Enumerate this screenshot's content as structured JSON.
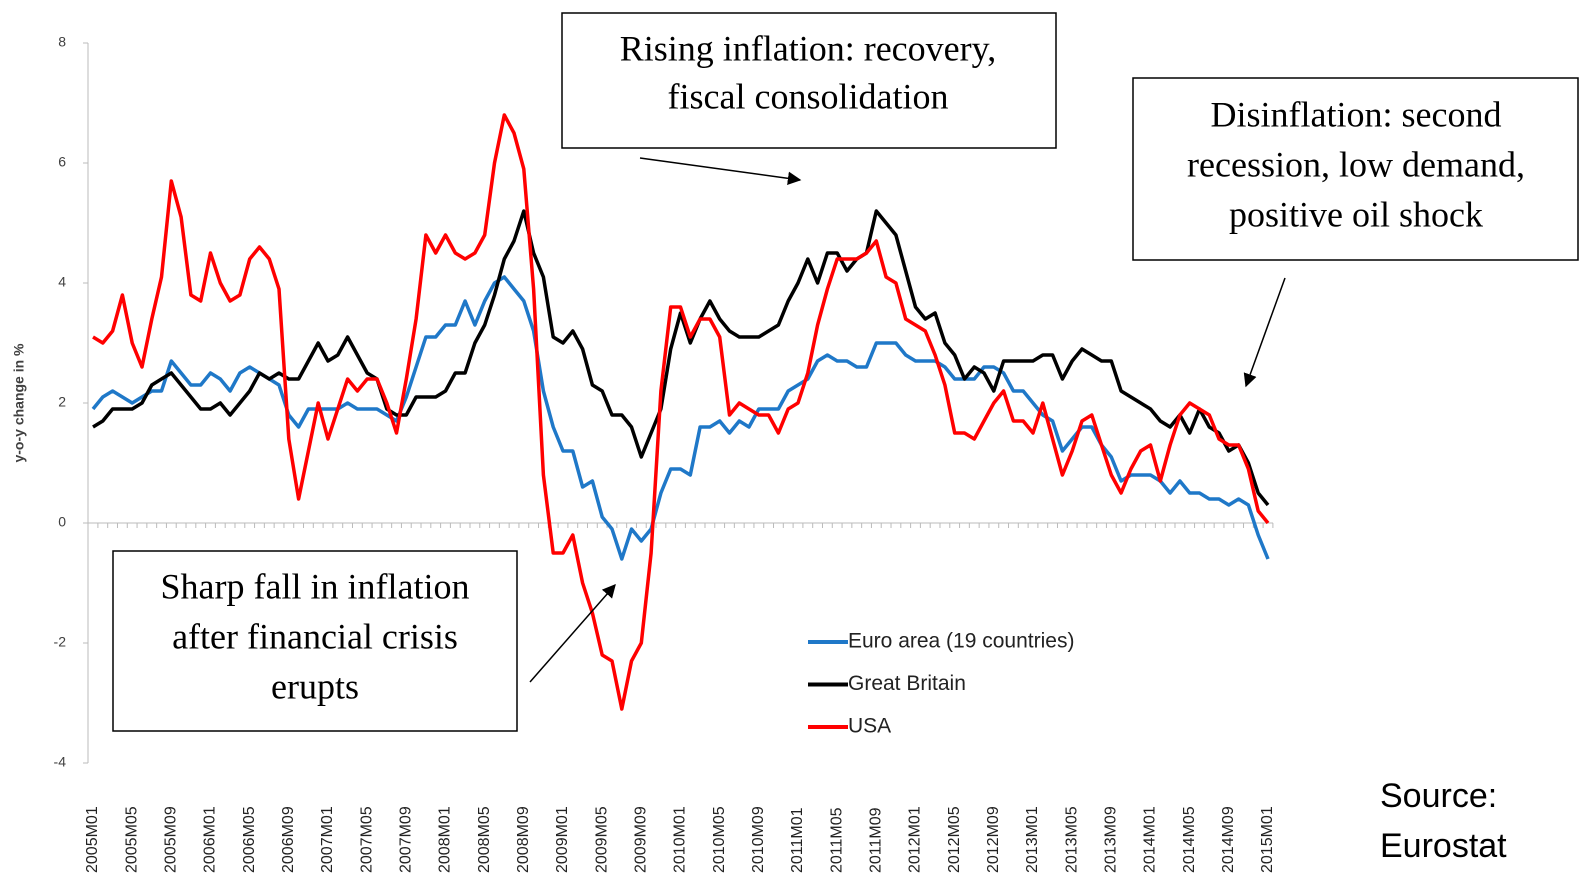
{
  "chart_data": {
    "type": "line",
    "y_label": "y-o-y change in %",
    "categories": [
      "2005M01",
      null,
      null,
      null,
      "2005M05",
      null,
      null,
      null,
      "2005M09",
      null,
      null,
      null,
      "2006M01",
      null,
      null,
      null,
      "2006M05",
      null,
      null,
      null,
      "2006M09",
      null,
      null,
      null,
      "2007M01",
      null,
      null,
      null,
      "2007M05",
      null,
      null,
      null,
      "2007M09",
      null,
      null,
      null,
      "2008M01",
      null,
      null,
      null,
      "2008M05",
      null,
      null,
      null,
      "2008M09",
      null,
      null,
      null,
      "2009M01",
      null,
      null,
      null,
      "2009M05",
      null,
      null,
      null,
      "2009M09",
      null,
      null,
      null,
      "2010M01",
      null,
      null,
      null,
      "2010M05",
      null,
      null,
      null,
      "2010M09",
      null,
      null,
      null,
      "2011M01",
      null,
      null,
      null,
      "2011M05",
      null,
      null,
      null,
      "2011M09",
      null,
      null,
      null,
      "2012M01",
      null,
      null,
      null,
      "2012M05",
      null,
      null,
      null,
      "2012M09",
      null,
      null,
      null,
      "2013M01",
      null,
      null,
      null,
      "2013M05",
      null,
      null,
      null,
      "2013M09",
      null,
      null,
      null,
      "2014M01",
      null,
      null,
      null,
      "2014M05",
      null,
      null,
      null,
      "2014M09",
      null,
      null,
      null,
      "2015M01"
    ],
    "series": [
      {
        "name": "Euro area (19 countries)",
        "color": "#1f78c8",
        "values": [
          1.9,
          2.1,
          2.2,
          2.1,
          2.0,
          2.1,
          2.2,
          2.2,
          2.7,
          2.5,
          2.3,
          2.3,
          2.5,
          2.4,
          2.2,
          2.5,
          2.6,
          2.5,
          2.4,
          2.3,
          1.8,
          1.6,
          1.9,
          1.9,
          1.9,
          1.9,
          2.0,
          1.9,
          1.9,
          1.9,
          1.8,
          1.7,
          2.1,
          2.6,
          3.1,
          3.1,
          3.3,
          3.3,
          3.7,
          3.3,
          3.7,
          4.0,
          4.1,
          3.9,
          3.7,
          3.2,
          2.2,
          1.6,
          1.2,
          1.2,
          0.6,
          0.7,
          0.1,
          -0.1,
          -0.6,
          -0.1,
          -0.3,
          -0.1,
          0.5,
          0.9,
          0.9,
          0.8,
          1.6,
          1.6,
          1.7,
          1.5,
          1.7,
          1.6,
          1.9,
          1.9,
          1.9,
          2.2,
          2.3,
          2.4,
          2.7,
          2.8,
          2.7,
          2.7,
          2.6,
          2.6,
          3.0,
          3.0,
          3.0,
          2.8,
          2.7,
          2.7,
          2.7,
          2.6,
          2.4,
          2.4,
          2.4,
          2.6,
          2.6,
          2.5,
          2.2,
          2.2,
          2.0,
          1.8,
          1.7,
          1.2,
          1.4,
          1.6,
          1.6,
          1.3,
          1.1,
          0.7,
          0.8,
          0.8,
          0.8,
          0.7,
          0.5,
          0.7,
          0.5,
          0.5,
          0.4,
          0.4,
          0.3,
          0.4,
          0.3,
          -0.2,
          -0.6
        ]
      },
      {
        "name": "Great Britain",
        "color": "#000000",
        "values": [
          1.6,
          1.7,
          1.9,
          1.9,
          1.9,
          2.0,
          2.3,
          2.4,
          2.5,
          2.3,
          2.1,
          1.9,
          1.9,
          2.0,
          1.8,
          2.0,
          2.2,
          2.5,
          2.4,
          2.5,
          2.4,
          2.4,
          2.7,
          3.0,
          2.7,
          2.8,
          3.1,
          2.8,
          2.5,
          2.4,
          1.9,
          1.8,
          1.8,
          2.1,
          2.1,
          2.1,
          2.2,
          2.5,
          2.5,
          3.0,
          3.3,
          3.8,
          4.4,
          4.7,
          5.2,
          4.5,
          4.1,
          3.1,
          3.0,
          3.2,
          2.9,
          2.3,
          2.2,
          1.8,
          1.8,
          1.6,
          1.1,
          1.5,
          1.9,
          2.9,
          3.5,
          3.0,
          3.4,
          3.7,
          3.4,
          3.2,
          3.1,
          3.1,
          3.1,
          3.2,
          3.3,
          3.7,
          4.0,
          4.4,
          4.0,
          4.5,
          4.5,
          4.2,
          4.4,
          4.5,
          5.2,
          5.0,
          4.8,
          4.2,
          3.6,
          3.4,
          3.5,
          3.0,
          2.8,
          2.4,
          2.6,
          2.5,
          2.2,
          2.7,
          2.7,
          2.7,
          2.7,
          2.8,
          2.8,
          2.4,
          2.7,
          2.9,
          2.8,
          2.7,
          2.7,
          2.2,
          2.1,
          2.0,
          1.9,
          1.7,
          1.6,
          1.8,
          1.5,
          1.9,
          1.6,
          1.5,
          1.2,
          1.3,
          1.0,
          0.5,
          0.3
        ]
      },
      {
        "name": "USA",
        "color": "#ff0000",
        "values": [
          3.1,
          3.0,
          3.2,
          3.8,
          3.0,
          2.6,
          3.4,
          4.1,
          5.7,
          5.1,
          3.8,
          3.7,
          4.5,
          4.0,
          3.7,
          3.8,
          4.4,
          4.6,
          4.4,
          3.9,
          1.4,
          0.4,
          1.2,
          2.0,
          1.4,
          1.9,
          2.4,
          2.2,
          2.4,
          2.4,
          2.0,
          1.5,
          2.4,
          3.4,
          4.8,
          4.5,
          4.8,
          4.5,
          4.4,
          4.5,
          4.8,
          6.0,
          6.8,
          6.5,
          5.9,
          3.9,
          0.8,
          -0.5,
          -0.5,
          -0.2,
          -1.0,
          -1.5,
          -2.2,
          -2.3,
          -3.1,
          -2.3,
          -2.0,
          -0.5,
          2.2,
          3.6,
          3.6,
          3.1,
          3.4,
          3.4,
          3.1,
          1.8,
          2.0,
          1.9,
          1.8,
          1.8,
          1.5,
          1.9,
          2.0,
          2.5,
          3.3,
          3.9,
          4.4,
          4.4,
          4.4,
          4.5,
          4.7,
          4.1,
          4.0,
          3.4,
          3.3,
          3.2,
          2.8,
          2.3,
          1.5,
          1.5,
          1.4,
          1.7,
          2.0,
          2.2,
          1.7,
          1.7,
          1.5,
          2.0,
          1.4,
          0.8,
          1.2,
          1.7,
          1.8,
          1.3,
          0.8,
          0.5,
          0.9,
          1.2,
          1.3,
          0.7,
          1.3,
          1.8,
          2.0,
          1.9,
          1.8,
          1.4,
          1.3,
          1.3,
          0.9,
          0.2,
          0.0
        ]
      }
    ],
    "ylim": [
      -4,
      8
    ],
    "yticks": [
      -4,
      -2,
      0,
      2,
      4,
      6,
      8
    ],
    "legend": "lower center",
    "annotations": [
      {
        "lines": [
          "Rising inflation: recovery,",
          "fiscal consolidation"
        ]
      },
      {
        "lines": [
          "Disinflation: second",
          "recession, low demand,",
          "positive oil shock"
        ]
      },
      {
        "lines": [
          "Sharp fall in inflation",
          "after financial crisis",
          "erupts"
        ]
      }
    ],
    "source": [
      "Source:",
      "Eurostat"
    ]
  }
}
